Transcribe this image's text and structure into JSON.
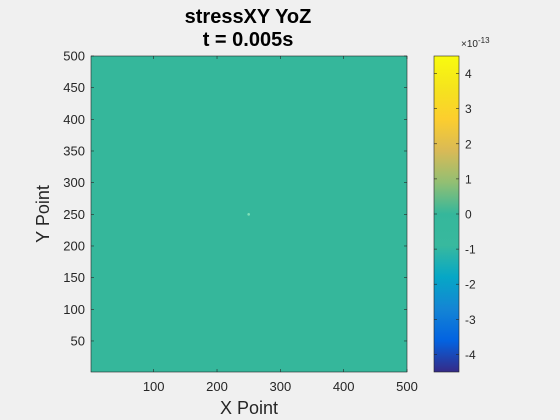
{
  "chart_data": {
    "type": "heatmap",
    "title": [
      "stressXY YoZ",
      "t = 0.005s"
    ],
    "xlabel": "X Point",
    "ylabel": "Y Point",
    "xlim": [
      1,
      500
    ],
    "ylim": [
      1,
      500
    ],
    "x_ticks": [
      100,
      200,
      300,
      400,
      500
    ],
    "y_ticks": [
      50,
      100,
      150,
      200,
      250,
      300,
      350,
      400,
      450,
      500
    ],
    "field": {
      "uniform_value": 0,
      "features": [
        {
          "x": 250,
          "y": 250,
          "value": 0,
          "note": "small point disturbance at center"
        }
      ]
    },
    "colorbar": {
      "colormap": "parula",
      "exponent_label": "×10",
      "exponent": "-13",
      "clim": [
        -4.5,
        4.5
      ],
      "ticks": [
        4,
        3,
        2,
        1,
        0,
        -1,
        -2,
        -3,
        -4
      ]
    },
    "colors": {
      "background": "#f0f0f0",
      "field": "#35b79b",
      "axis": "#262626"
    }
  }
}
